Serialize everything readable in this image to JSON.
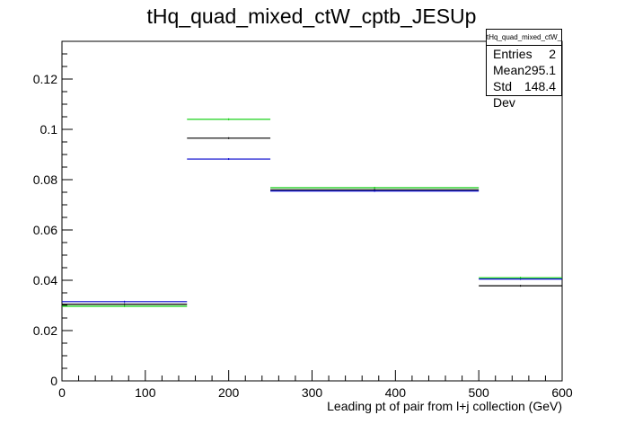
{
  "chart_data": {
    "type": "step-histogram",
    "title": "tHq_quad_mixed_ctW_cptb_JESUp",
    "xlabel": "Leading pt of pair from l+j collection (GeV)",
    "ylabel": "",
    "xlim": [
      0,
      600
    ],
    "ylim": [
      0,
      0.135
    ],
    "x_ticks": [
      0,
      100,
      200,
      300,
      400,
      500,
      600
    ],
    "y_ticks": [
      0,
      0.02,
      0.04,
      0.06,
      0.08,
      0.1,
      0.12
    ],
    "x_tick_labels": [
      "0",
      "100",
      "200",
      "300",
      "400",
      "500",
      "600"
    ],
    "y_tick_labels": [
      "0",
      "0.02",
      "0.04",
      "0.06",
      "0.08",
      "0.1",
      "0.12"
    ],
    "bin_edges": [
      0,
      150,
      250,
      500,
      600
    ],
    "series": [
      {
        "color": "#000000",
        "values": [
          0.0305,
          0.0965,
          0.076,
          0.0378
        ]
      },
      {
        "color": "#0000cc",
        "values": [
          0.0315,
          0.0882,
          0.0755,
          0.0405
        ]
      },
      {
        "color": "#00cc00",
        "values": [
          0.0297,
          0.104,
          0.0768,
          0.041
        ]
      }
    ],
    "grid": false
  },
  "stats": {
    "title": "tHq_quad_mixed_ctW_cptb_JESUp",
    "rows": [
      {
        "label": "Entries",
        "value": "2"
      },
      {
        "label": "Mean",
        "value": "295.1"
      },
      {
        "label": "Std Dev",
        "value": "148.4"
      }
    ]
  }
}
